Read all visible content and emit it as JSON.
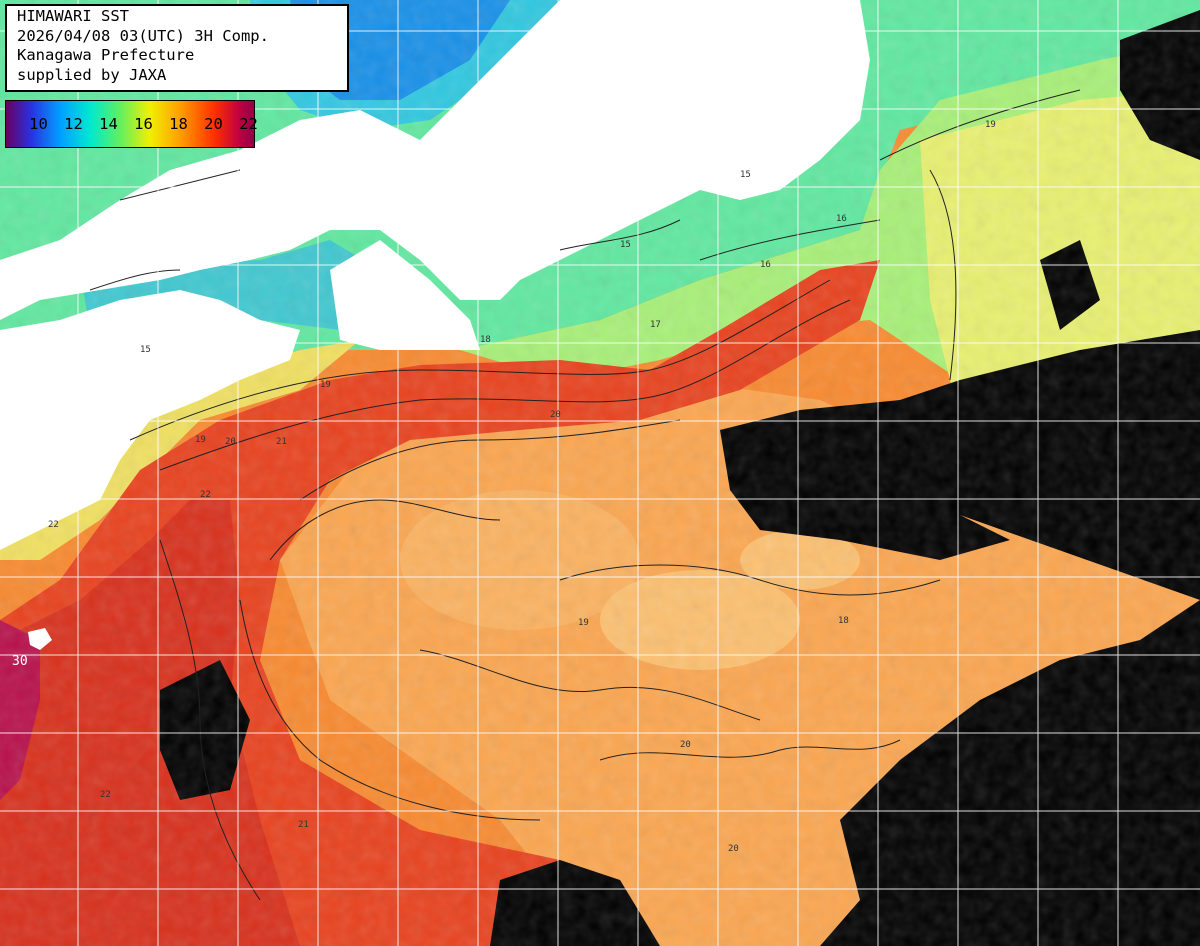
{
  "title": {
    "line1": "HIMAWARI SST",
    "line2": "2026/04/08 03(UTC) 3H Comp.",
    "line3": "Kanagawa Prefecture",
    "line4": "supplied by JAXA"
  },
  "color_scale": {
    "labels": [
      "10",
      "12",
      "14",
      "16",
      "18",
      "20",
      "22"
    ]
  },
  "grid_label": "30",
  "isotherm_labels": [
    "15",
    "15",
    "15",
    "16",
    "16",
    "17",
    "18",
    "19",
    "19",
    "19",
    "20",
    "20",
    "20",
    "21",
    "21",
    "22",
    "22",
    "22",
    "20",
    "19",
    "18"
  ],
  "colors": {
    "land": "#ffffff",
    "cloud": "#000000",
    "sst_22": "#e8301a",
    "sst_20": "#f87e2c",
    "sst_19": "#fba048",
    "sst_18": "#f8d040",
    "sst_17": "#e8f070",
    "sst_16": "#98f080",
    "sst_15": "#40d8b0",
    "sst_14": "#20b0e8",
    "sst_warm_edge": "#c01048",
    "grid": "#ffffff"
  }
}
